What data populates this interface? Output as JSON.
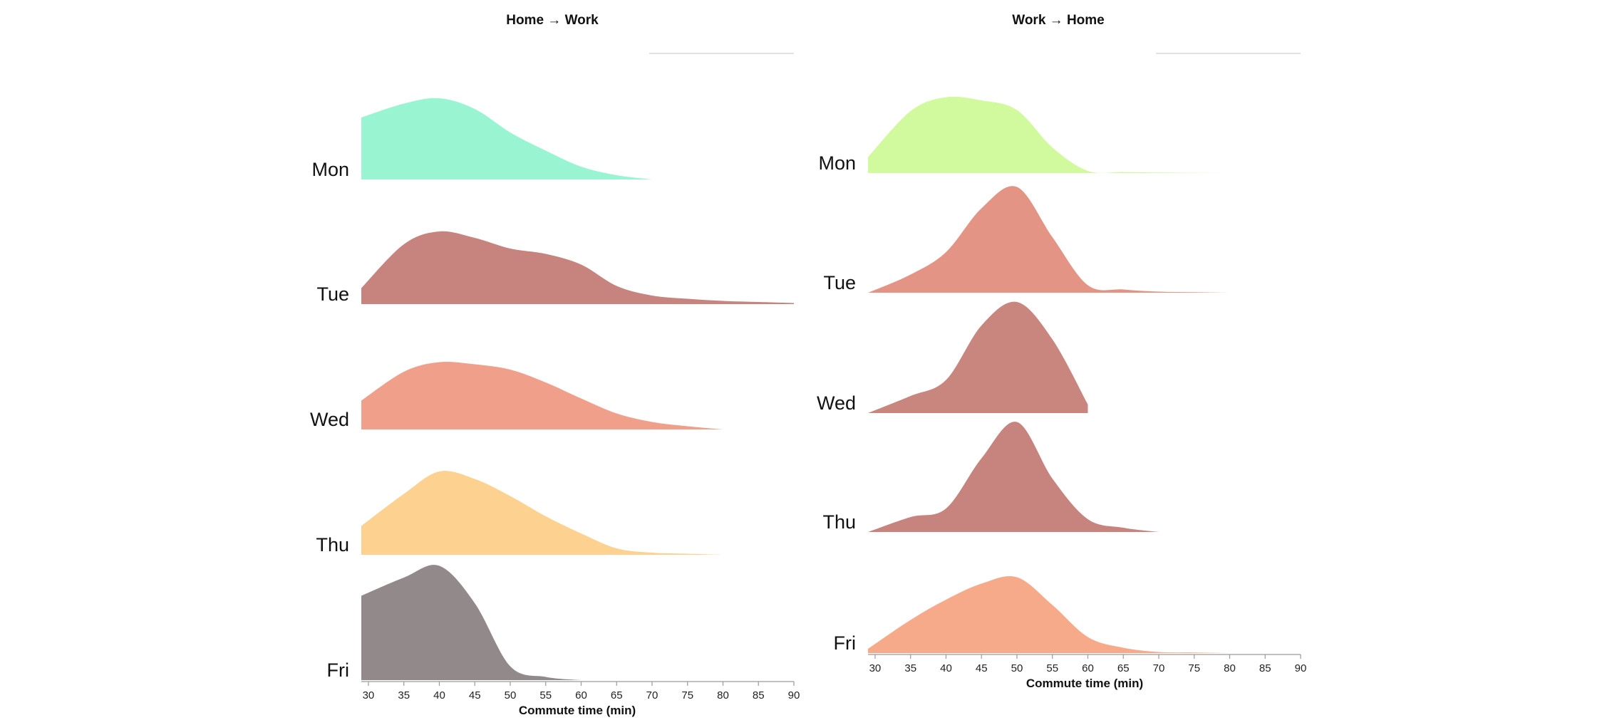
{
  "chart_data": [
    {
      "type": "area",
      "subtype": "ridgeline",
      "title": "Home → Work",
      "xlabel": "Commute time (min)",
      "ylabel": "",
      "xlim": [
        29,
        90
      ],
      "xticks": [
        30,
        35,
        40,
        45,
        50,
        55,
        60,
        65,
        70,
        75,
        80,
        85,
        90
      ],
      "categories": [
        "Mon",
        "Tue",
        "Wed",
        "Thu",
        "Fri"
      ],
      "series": [
        {
          "name": "Mon",
          "color": "#99f5d1",
          "x": [
            29,
            35,
            40,
            45,
            50,
            55,
            60,
            65,
            70
          ],
          "values": [
            0.58,
            0.71,
            0.76,
            0.66,
            0.44,
            0.27,
            0.12,
            0.04,
            0.0
          ]
        },
        {
          "name": "Tue",
          "color": "#c7837e",
          "x": [
            29,
            35,
            40,
            45,
            50,
            55,
            60,
            65,
            70,
            75,
            80,
            85,
            90
          ],
          "values": [
            0.15,
            0.56,
            0.68,
            0.62,
            0.52,
            0.47,
            0.37,
            0.17,
            0.08,
            0.05,
            0.03,
            0.02,
            0.01
          ]
        },
        {
          "name": "Wed",
          "color": "#f0a08a",
          "x": [
            29,
            35,
            40,
            45,
            50,
            55,
            60,
            65,
            70,
            75,
            80
          ],
          "values": [
            0.27,
            0.54,
            0.63,
            0.61,
            0.56,
            0.44,
            0.29,
            0.15,
            0.07,
            0.03,
            0.0
          ]
        },
        {
          "name": "Thu",
          "color": "#fdd190",
          "x": [
            29,
            35,
            40,
            45,
            50,
            55,
            60,
            65,
            70,
            75,
            80
          ],
          "values": [
            0.27,
            0.57,
            0.78,
            0.71,
            0.55,
            0.36,
            0.2,
            0.06,
            0.02,
            0.01,
            0.0
          ]
        },
        {
          "name": "Fri",
          "color": "#928a8a",
          "x": [
            29,
            35,
            40,
            45,
            50,
            55,
            60
          ],
          "values": [
            0.79,
            0.96,
            1.07,
            0.72,
            0.13,
            0.03,
            0.0
          ]
        }
      ]
    },
    {
      "type": "area",
      "subtype": "ridgeline",
      "title": "Work → Home",
      "xlabel": "Commute time (min)",
      "ylabel": "",
      "xlim": [
        29,
        90
      ],
      "xticks": [
        30,
        35,
        40,
        45,
        50,
        55,
        60,
        65,
        70,
        75,
        80,
        85,
        90
      ],
      "categories": [
        "Mon",
        "Tue",
        "Wed",
        "Thu",
        "Fri"
      ],
      "series": [
        {
          "name": "Mon",
          "color": "#d1fa9f",
          "x": [
            29,
            35,
            40,
            45,
            50,
            55,
            60,
            65,
            70,
            80,
            90
          ],
          "values": [
            0.15,
            0.58,
            0.71,
            0.68,
            0.59,
            0.24,
            0.02,
            0.01,
            0.005,
            0.0,
            0.0
          ]
        },
        {
          "name": "Tue",
          "color": "#e39484",
          "x": [
            29,
            35,
            40,
            45,
            50,
            55,
            60,
            65,
            70,
            75,
            80
          ],
          "values": [
            0.0,
            0.17,
            0.38,
            0.79,
            0.99,
            0.52,
            0.07,
            0.03,
            0.01,
            0.005,
            0.0
          ]
        },
        {
          "name": "Wed",
          "color": "#c9867f",
          "x": [
            29,
            35,
            40,
            45,
            50,
            55,
            60
          ],
          "values": [
            0.0,
            0.16,
            0.31,
            0.82,
            1.04,
            0.69,
            0.08
          ]
        },
        {
          "name": "Thu",
          "color": "#c7837e",
          "x": [
            29,
            35,
            40,
            45,
            50,
            55,
            60,
            65,
            70
          ],
          "values": [
            0.0,
            0.14,
            0.22,
            0.69,
            1.03,
            0.5,
            0.12,
            0.04,
            0.0
          ]
        },
        {
          "name": "Fri",
          "color": "#f6aa8a",
          "x": [
            29,
            35,
            40,
            45,
            50,
            55,
            60,
            65,
            70,
            75,
            80
          ],
          "values": [
            0.04,
            0.31,
            0.5,
            0.65,
            0.71,
            0.45,
            0.15,
            0.05,
            0.01,
            0.005,
            0.0
          ]
        }
      ]
    }
  ]
}
